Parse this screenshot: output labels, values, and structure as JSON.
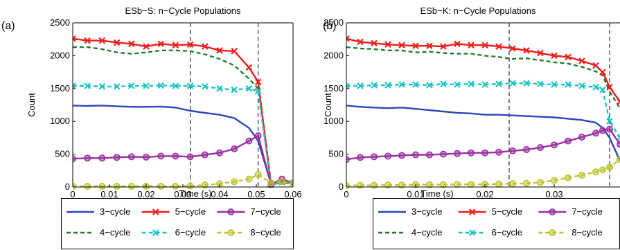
{
  "palette": {
    "3-cycle": "#2946b8",
    "4-cycle": "#1f7d2a",
    "5-cycle": "#f01c1c",
    "6-cycle": "#1cc4c4",
    "7-cycle": "#9a2fa0",
    "8-cycle": "#bcc42a"
  },
  "chart_data": [
    {
      "panel_label": "(a)",
      "type": "line",
      "title": "ESb−S: n−Cycle Populations",
      "xlabel": "Time (s)",
      "ylabel": "Count",
      "xlim": [
        0,
        0.06
      ],
      "ylim": [
        0,
        2500
      ],
      "xticks": [
        "0",
        "0.01",
        "0.02",
        "0.03",
        "0.04",
        "0.05",
        "0.06"
      ],
      "xtick_values": [
        0,
        0.01,
        0.02,
        0.03,
        0.04,
        0.05,
        0.06
      ],
      "yticks": [
        "0",
        "500",
        "1000",
        "1500",
        "2000",
        "2500"
      ],
      "ytick_values": [
        0,
        500,
        1000,
        1500,
        2000,
        2500
      ],
      "vlines": [
        0.032,
        0.0505
      ],
      "series": [
        {
          "name": "3−cycle",
          "x": [
            0,
            0.004,
            0.008,
            0.012,
            0.016,
            0.02,
            0.024,
            0.028,
            0.032,
            0.036,
            0.04,
            0.044,
            0.048,
            0.0505,
            0.054,
            0.057,
            0.06
          ],
          "y": [
            1240,
            1235,
            1240,
            1230,
            1220,
            1220,
            1225,
            1210,
            1160,
            1130,
            1100,
            1050,
            900,
            700,
            50,
            60,
            60
          ]
        },
        {
          "name": "4−cycle",
          "x": [
            0,
            0.004,
            0.008,
            0.012,
            0.016,
            0.02,
            0.024,
            0.028,
            0.032,
            0.036,
            0.04,
            0.044,
            0.048,
            0.0505,
            0.054,
            0.057,
            0.06
          ],
          "y": [
            2130,
            2130,
            2100,
            2050,
            2030,
            2050,
            2080,
            2080,
            2070,
            2020,
            1950,
            1850,
            1650,
            1500,
            80,
            60,
            60
          ]
        },
        {
          "name": "5−cycle",
          "x": [
            0,
            0.004,
            0.008,
            0.012,
            0.016,
            0.02,
            0.024,
            0.028,
            0.032,
            0.036,
            0.04,
            0.044,
            0.048,
            0.0505,
            0.054,
            0.057,
            0.06
          ],
          "y": [
            2260,
            2230,
            2230,
            2200,
            2180,
            2140,
            2180,
            2160,
            2170,
            2140,
            2080,
            2070,
            1820,
            1600,
            50,
            90,
            60
          ]
        },
        {
          "name": "6−cycle",
          "x": [
            0,
            0.004,
            0.008,
            0.012,
            0.016,
            0.02,
            0.024,
            0.028,
            0.032,
            0.036,
            0.04,
            0.044,
            0.048,
            0.0505,
            0.054,
            0.057,
            0.06
          ],
          "y": [
            1540,
            1540,
            1530,
            1530,
            1540,
            1540,
            1545,
            1540,
            1540,
            1530,
            1500,
            1480,
            1500,
            1460,
            30,
            70,
            60
          ]
        },
        {
          "name": "7−cycle",
          "x": [
            0,
            0.004,
            0.008,
            0.012,
            0.016,
            0.02,
            0.024,
            0.028,
            0.032,
            0.036,
            0.04,
            0.044,
            0.048,
            0.0505,
            0.054,
            0.057,
            0.06
          ],
          "y": [
            430,
            440,
            440,
            450,
            460,
            455,
            470,
            470,
            460,
            490,
            520,
            580,
            700,
            780,
            40,
            120,
            60
          ]
        },
        {
          "name": "8−cycle",
          "x": [
            0,
            0.004,
            0.008,
            0.012,
            0.016,
            0.02,
            0.024,
            0.028,
            0.032,
            0.036,
            0.04,
            0.044,
            0.048,
            0.0505,
            0.054,
            0.057,
            0.06
          ],
          "y": [
            10,
            10,
            10,
            10,
            10,
            12,
            12,
            12,
            15,
            30,
            50,
            80,
            120,
            190,
            60,
            80,
            60
          ]
        }
      ]
    },
    {
      "panel_label": "(b)",
      "type": "line",
      "title": "ESb−K: n−Cycle Populations",
      "xlabel": "Time (s)",
      "ylabel": "Count",
      "xlim": [
        0,
        0.0395
      ],
      "ylim": [
        0,
        2500
      ],
      "xticks": [
        "0",
        "0.01",
        "0.02",
        "0.03"
      ],
      "xtick_values": [
        0,
        0.01,
        0.02,
        0.03
      ],
      "yticks": [
        "0",
        "500",
        "1000",
        "1500",
        "2000",
        "2500"
      ],
      "ytick_values": [
        0,
        500,
        1000,
        1500,
        2000,
        2500
      ],
      "vlines": [
        0.0235,
        0.038
      ],
      "series": [
        {
          "name": "3−cycle",
          "x": [
            0,
            0.002,
            0.004,
            0.006,
            0.008,
            0.01,
            0.012,
            0.014,
            0.016,
            0.018,
            0.02,
            0.022,
            0.024,
            0.026,
            0.028,
            0.03,
            0.032,
            0.034,
            0.036,
            0.037,
            0.038,
            0.0395
          ],
          "y": [
            1240,
            1220,
            1210,
            1200,
            1210,
            1190,
            1170,
            1150,
            1130,
            1120,
            1100,
            1100,
            1090,
            1080,
            1070,
            1060,
            1040,
            1020,
            980,
            900,
            750,
            400
          ]
        },
        {
          "name": "4−cycle",
          "x": [
            0,
            0.002,
            0.004,
            0.006,
            0.008,
            0.01,
            0.012,
            0.014,
            0.016,
            0.018,
            0.02,
            0.022,
            0.024,
            0.026,
            0.028,
            0.03,
            0.032,
            0.034,
            0.036,
            0.037,
            0.038,
            0.0395
          ],
          "y": [
            2130,
            2110,
            2100,
            2080,
            2080,
            2050,
            2060,
            2040,
            2030,
            2030,
            2000,
            1980,
            1950,
            1960,
            1930,
            1900,
            1880,
            1830,
            1760,
            1700,
            1450,
            1200
          ]
        },
        {
          "name": "5−cycle",
          "x": [
            0,
            0.002,
            0.004,
            0.006,
            0.008,
            0.01,
            0.012,
            0.014,
            0.016,
            0.018,
            0.02,
            0.022,
            0.024,
            0.026,
            0.028,
            0.03,
            0.032,
            0.034,
            0.036,
            0.037,
            0.038,
            0.0395
          ],
          "y": [
            2260,
            2210,
            2190,
            2170,
            2160,
            2150,
            2150,
            2140,
            2180,
            2160,
            2160,
            2140,
            2110,
            2080,
            2040,
            2000,
            1980,
            1920,
            1850,
            1750,
            1520,
            1300
          ]
        },
        {
          "name": "6−cycle",
          "x": [
            0,
            0.002,
            0.004,
            0.006,
            0.008,
            0.01,
            0.012,
            0.014,
            0.016,
            0.018,
            0.02,
            0.022,
            0.024,
            0.026,
            0.028,
            0.03,
            0.032,
            0.034,
            0.036,
            0.037,
            0.038,
            0.0395
          ],
          "y": [
            1540,
            1540,
            1550,
            1550,
            1560,
            1560,
            1550,
            1570,
            1560,
            1570,
            1560,
            1570,
            1580,
            1580,
            1570,
            1560,
            1560,
            1540,
            1520,
            1480,
            1000,
            750
          ]
        },
        {
          "name": "7−cycle",
          "x": [
            0,
            0.002,
            0.004,
            0.006,
            0.008,
            0.01,
            0.012,
            0.014,
            0.016,
            0.018,
            0.02,
            0.022,
            0.024,
            0.026,
            0.028,
            0.03,
            0.032,
            0.034,
            0.036,
            0.037,
            0.038,
            0.0395
          ],
          "y": [
            420,
            450,
            460,
            470,
            480,
            490,
            490,
            500,
            510,
            520,
            520,
            530,
            550,
            570,
            600,
            640,
            700,
            760,
            820,
            860,
            880,
            650
          ]
        },
        {
          "name": "8−cycle",
          "x": [
            0,
            0.002,
            0.004,
            0.006,
            0.008,
            0.01,
            0.012,
            0.014,
            0.016,
            0.018,
            0.02,
            0.022,
            0.024,
            0.026,
            0.028,
            0.03,
            0.032,
            0.034,
            0.036,
            0.037,
            0.038,
            0.0395
          ],
          "y": [
            20,
            25,
            25,
            30,
            30,
            35,
            35,
            35,
            40,
            40,
            40,
            45,
            50,
            55,
            70,
            100,
            140,
            180,
            230,
            260,
            300,
            420
          ]
        }
      ]
    }
  ],
  "legend": {
    "entries": [
      "3−cycle",
      "5−cycle",
      "7−cycle",
      "4−cycle",
      "6−cycle",
      "8−cycle"
    ]
  }
}
